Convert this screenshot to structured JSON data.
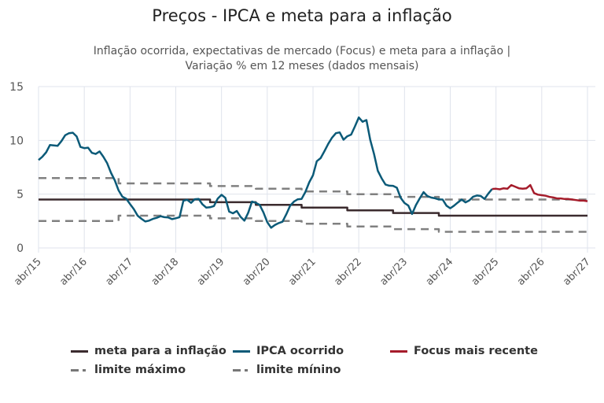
{
  "chart_data": {
    "type": "line",
    "title": "Preços - IPCA e meta para a inflação",
    "subtitle_lines": [
      "Inflação ocorrida, expectativas de mercado (Focus) e meta para a inflação |",
      "Variação % em 12 meses (dados mensais)"
    ],
    "xlabel": "",
    "ylabel": "",
    "xlim": [
      "2015-04",
      "2027-04"
    ],
    "ylim": [
      0,
      15
    ],
    "y_ticks": [
      0,
      5,
      10,
      15
    ],
    "x_ticks": [
      {
        "date": "2015-04",
        "label": "abr/15"
      },
      {
        "date": "2016-04",
        "label": "abr/16"
      },
      {
        "date": "2017-04",
        "label": "abr/17"
      },
      {
        "date": "2018-04",
        "label": "abr/18"
      },
      {
        "date": "2019-04",
        "label": "abr/19"
      },
      {
        "date": "2020-04",
        "label": "abr/20"
      },
      {
        "date": "2021-04",
        "label": "abr/21"
      },
      {
        "date": "2022-04",
        "label": "abr/22"
      },
      {
        "date": "2023-04",
        "label": "abr/23"
      },
      {
        "date": "2024-04",
        "label": "abr/24"
      },
      {
        "date": "2025-04",
        "label": "abr/25"
      },
      {
        "date": "2026-04",
        "label": "abr/26"
      },
      {
        "date": "2027-04",
        "label": "abr/27"
      }
    ],
    "grid": true,
    "legend_position": "bottom",
    "series": [
      {
        "name": "limite máximo",
        "color": "#808080",
        "style": "dashed",
        "step": true,
        "points": [
          [
            "2015-04",
            6.5
          ],
          [
            "2017-01",
            6.0
          ],
          [
            "2019-01",
            5.75
          ],
          [
            "2020-01",
            5.5
          ],
          [
            "2021-01",
            5.25
          ],
          [
            "2022-01",
            5.0
          ],
          [
            "2023-01",
            4.75
          ],
          [
            "2024-01",
            4.5
          ],
          [
            "2027-04",
            4.5
          ]
        ]
      },
      {
        "name": "limite mínino",
        "color": "#808080",
        "style": "dashed",
        "step": true,
        "points": [
          [
            "2015-04",
            2.5
          ],
          [
            "2017-01",
            3.0
          ],
          [
            "2019-01",
            2.75
          ],
          [
            "2020-01",
            2.5
          ],
          [
            "2021-01",
            2.25
          ],
          [
            "2022-01",
            2.0
          ],
          [
            "2023-01",
            1.75
          ],
          [
            "2024-01",
            1.5
          ],
          [
            "2027-04",
            1.5
          ]
        ]
      },
      {
        "name": "meta para a inflação",
        "color": "#3b2b2e",
        "style": "solid",
        "step": true,
        "points": [
          [
            "2015-04",
            4.5
          ],
          [
            "2019-01",
            4.25
          ],
          [
            "2020-01",
            4.0
          ],
          [
            "2021-01",
            3.75
          ],
          [
            "2022-01",
            3.5
          ],
          [
            "2023-01",
            3.25
          ],
          [
            "2024-01",
            3.0
          ],
          [
            "2027-04",
            3.0
          ]
        ]
      },
      {
        "name": "IPCA ocorrido",
        "color": "#0b5a78",
        "style": "solid",
        "start": "2015-04",
        "values": [
          8.17,
          8.47,
          8.89,
          9.56,
          9.53,
          9.49,
          9.93,
          10.48,
          10.67,
          10.71,
          10.36,
          9.39,
          9.28,
          9.32,
          8.84,
          8.74,
          8.97,
          8.48,
          7.87,
          6.99,
          6.29,
          5.35,
          4.76,
          4.57,
          4.08,
          3.6,
          3.0,
          2.71,
          2.46,
          2.54,
          2.7,
          2.8,
          2.95,
          2.86,
          2.84,
          2.68,
          2.76,
          2.86,
          4.39,
          4.48,
          4.19,
          4.53,
          4.56,
          4.05,
          3.75,
          3.78,
          3.89,
          4.58,
          4.94,
          4.66,
          3.37,
          3.22,
          3.43,
          2.89,
          2.54,
          3.27,
          4.31,
          4.19,
          4.01,
          3.3,
          2.4,
          1.88,
          2.13,
          2.31,
          2.44,
          3.14,
          3.92,
          4.31,
          4.52,
          4.56,
          5.2,
          6.1,
          6.76,
          8.06,
          8.35,
          8.99,
          9.68,
          10.25,
          10.67,
          10.74,
          10.06,
          10.38,
          10.54,
          11.3,
          12.13,
          11.73,
          11.89,
          10.07,
          8.73,
          7.17,
          6.47,
          5.9,
          5.79,
          5.77,
          5.6,
          4.65,
          4.18,
          3.94,
          3.16,
          3.99,
          4.61,
          5.19,
          4.82,
          4.68,
          4.62,
          4.51,
          4.5,
          3.93,
          3.69,
          3.93,
          4.23,
          4.5,
          4.24,
          4.42,
          4.76,
          4.87,
          4.83,
          4.56,
          5.06,
          5.48
        ]
      },
      {
        "name": "Focus mais recente",
        "color": "#a51c2b",
        "style": "solid",
        "start": "2025-03",
        "values": [
          5.48,
          5.5,
          5.45,
          5.55,
          5.5,
          5.85,
          5.7,
          5.55,
          5.5,
          5.55,
          5.85,
          5.1,
          4.95,
          4.9,
          4.85,
          4.75,
          4.7,
          4.6,
          4.6,
          4.55,
          4.55,
          4.5,
          4.45,
          4.4,
          4.4,
          4.35
        ]
      }
    ]
  }
}
